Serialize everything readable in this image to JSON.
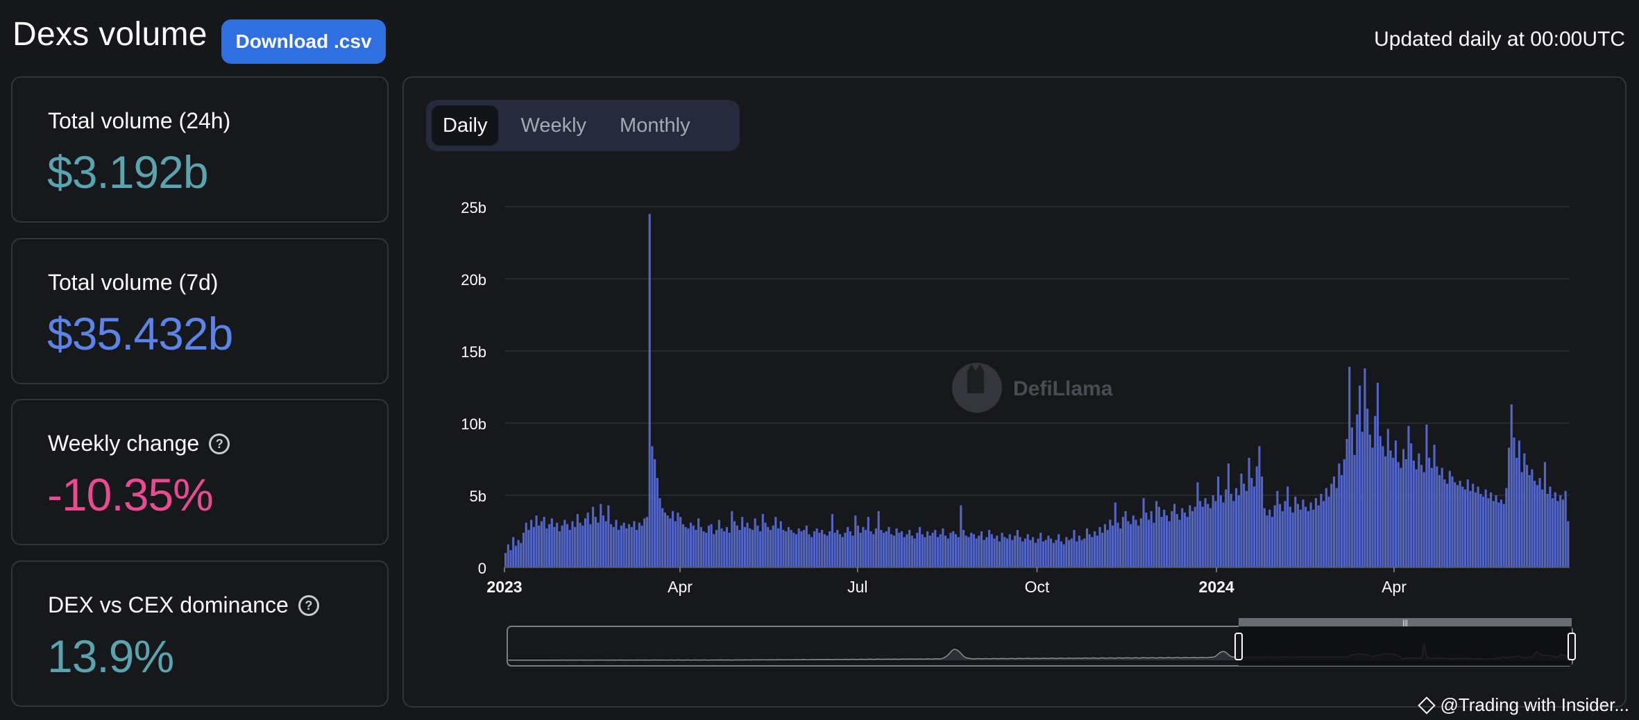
{
  "header": {
    "title": "Dexs volume",
    "download_label": "Download .csv",
    "updated": "Updated daily at 00:00UTC"
  },
  "stats": [
    {
      "label": "Total volume (24h)",
      "value": "$3.192b",
      "color": "#5aa4b0",
      "help": false
    },
    {
      "label": "Total volume (7d)",
      "value": "$35.432b",
      "color": "#5c84e6",
      "help": true
    },
    {
      "label": "Weekly change",
      "value": "-10.35%",
      "color": "#e84b8f",
      "help": true
    },
    {
      "label": "DEX vs CEX dominance",
      "value": "13.9%",
      "color": "#5aa4b0",
      "help": true
    }
  ],
  "tabs": [
    {
      "label": "Daily",
      "active": true
    },
    {
      "label": "Weekly",
      "active": false
    },
    {
      "label": "Monthly",
      "active": false
    }
  ],
  "watermark": "DefiLlama",
  "footer": {
    "credit": "@Trading with Insider..."
  },
  "chart_data": {
    "type": "bar",
    "title": "",
    "xlabel": "",
    "ylabel": "",
    "ylim": [
      0,
      25
    ],
    "y_unit": "b",
    "y_ticks": [
      "0",
      "5b",
      "10b",
      "15b",
      "20b",
      "25b"
    ],
    "x_ticks": [
      {
        "label": "2023",
        "bold": true
      },
      {
        "label": "Apr",
        "bold": false
      },
      {
        "label": "Jul",
        "bold": false
      },
      {
        "label": "Oct",
        "bold": false
      },
      {
        "label": "2024",
        "bold": true
      },
      {
        "label": "Apr",
        "bold": false
      }
    ],
    "x_start": "2023-01-01",
    "x_end": "2024-06-30",
    "bar_color": "#5366c7",
    "grid": true,
    "series": [
      {
        "values": [
          1.0,
          1.6,
          1.2,
          2.1,
          1.5,
          1.9,
          1.7,
          2.4,
          3.1,
          2.6,
          3.3,
          2.8,
          3.6,
          2.9,
          3.2,
          3.5,
          2.7,
          3.0,
          3.4,
          2.8,
          3.1,
          2.5,
          2.9,
          3.3,
          3.0,
          2.6,
          3.2,
          2.8,
          3.7,
          3.1,
          2.9,
          3.4,
          3.8,
          3.0,
          4.2,
          3.5,
          3.1,
          4.4,
          3.6,
          3.2,
          4.3,
          3.0,
          2.8,
          3.3,
          2.6,
          2.9,
          3.1,
          2.7,
          3.0,
          2.8,
          3.2,
          2.6,
          3.1,
          2.9,
          3.4,
          3.5,
          24.5,
          8.4,
          7.5,
          6.2,
          4.8,
          4.1,
          3.8,
          3.6,
          3.4,
          3.9,
          3.2,
          3.8,
          3.5,
          3.0,
          2.8,
          2.7,
          3.1,
          2.9,
          2.6,
          3.4,
          2.8,
          2.5,
          2.4,
          2.9,
          3.0,
          2.3,
          2.6,
          3.3,
          2.7,
          2.5,
          2.8,
          2.4,
          3.9,
          3.2,
          2.9,
          2.6,
          3.5,
          2.8,
          3.1,
          2.7,
          2.6,
          3.4,
          2.9,
          2.5,
          3.7,
          3.1,
          2.8,
          2.6,
          2.9,
          3.5,
          2.7,
          3.2,
          2.6,
          2.5,
          2.8,
          2.6,
          2.4,
          2.3,
          2.7,
          2.5,
          2.6,
          2.9,
          2.3,
          2.1,
          2.5,
          2.7,
          2.4,
          2.6,
          2.3,
          2.2,
          2.5,
          3.7,
          2.4,
          2.6,
          2.3,
          2.1,
          2.4,
          2.8,
          2.5,
          2.2,
          3.6,
          2.9,
          2.4,
          2.8,
          2.6,
          3.5,
          2.5,
          2.3,
          2.7,
          3.9,
          2.6,
          2.4,
          2.5,
          2.8,
          2.3,
          2.2,
          2.7,
          2.4,
          2.5,
          2.1,
          2.3,
          2.6,
          2.2,
          2.0,
          2.4,
          2.8,
          2.3,
          2.1,
          2.5,
          2.2,
          2.4,
          2.6,
          2.1,
          2.3,
          2.7,
          2.2,
          2.0,
          2.4,
          2.5,
          2.3,
          2.1,
          4.3,
          2.6,
          2.2,
          2.1,
          2.4,
          2.3,
          2.0,
          2.2,
          2.5,
          1.9,
          2.1,
          2.6,
          2.3,
          2.0,
          2.2,
          1.8,
          2.4,
          2.1,
          2.0,
          2.3,
          1.9,
          2.2,
          2.6,
          2.1,
          1.8,
          2.0,
          2.3,
          1.9,
          2.1,
          1.7,
          2.0,
          2.4,
          1.8,
          1.9,
          2.2,
          2.0,
          1.7,
          1.9,
          2.3,
          1.8,
          1.6,
          2.1,
          1.9,
          2.0,
          2.6,
          1.8,
          2.2,
          1.9,
          2.0,
          2.7,
          2.3,
          2.1,
          2.5,
          2.2,
          2.8,
          2.4,
          3.0,
          2.6,
          3.3,
          2.9,
          4.5,
          3.1,
          2.7,
          3.5,
          3.9,
          3.2,
          3.0,
          3.6,
          3.3,
          2.9,
          3.4,
          4.8,
          3.8,
          3.3,
          3.9,
          3.1,
          4.6,
          4.2,
          3.5,
          4.0,
          3.6,
          3.2,
          3.9,
          4.4,
          3.7,
          3.3,
          4.1,
          3.8,
          3.5,
          4.3,
          3.9,
          4.2,
          5.9,
          4.6,
          4.2,
          4.8,
          4.4,
          4.1,
          5.0,
          4.6,
          6.3,
          5.0,
          4.5,
          5.4,
          7.2,
          5.1,
          4.6,
          5.5,
          5.0,
          6.5,
          5.8,
          5.3,
          7.6,
          6.2,
          5.6,
          7.0,
          8.4,
          6.3,
          4.1,
          3.6,
          4.0,
          3.5,
          4.3,
          5.3,
          4.4,
          3.9,
          4.6,
          5.6,
          4.2,
          3.8,
          4.9,
          4.4,
          4.0,
          4.7,
          4.2,
          3.9,
          4.5,
          4.0,
          4.8,
          4.3,
          5.1,
          4.6,
          5.5,
          4.9,
          5.8,
          6.3,
          5.5,
          7.2,
          6.4,
          7.5,
          8.9,
          13.9,
          9.7,
          7.8,
          10.6,
          12.6,
          9.4,
          13.8,
          11.0,
          9.2,
          8.3,
          10.5,
          12.8,
          9.1,
          8.4,
          7.7,
          9.6,
          8.1,
          7.6,
          8.8,
          7.3,
          6.9,
          8.2,
          7.5,
          9.8,
          8.6,
          7.4,
          6.8,
          7.9,
          7.1,
          6.6,
          9.9,
          7.6,
          6.9,
          8.5,
          7.0,
          6.4,
          6.9,
          6.1,
          5.8,
          6.7,
          6.3,
          5.9,
          5.7,
          6.0,
          5.6,
          5.4,
          6.1,
          5.3,
          5.8,
          5.2,
          5.6,
          5.1,
          4.9,
          5.4,
          4.8,
          5.2,
          4.6,
          5.0,
          4.5,
          4.7,
          4.4,
          5.5,
          8.3,
          11.3,
          9.0,
          7.6,
          8.8,
          6.6,
          7.9,
          7.1,
          6.4,
          6.8,
          6.0,
          5.7,
          6.2,
          5.4,
          7.3,
          5.1,
          5.6,
          4.8,
          5.2,
          4.6,
          5.0,
          4.7,
          5.3,
          3.2
        ]
      }
    ]
  }
}
